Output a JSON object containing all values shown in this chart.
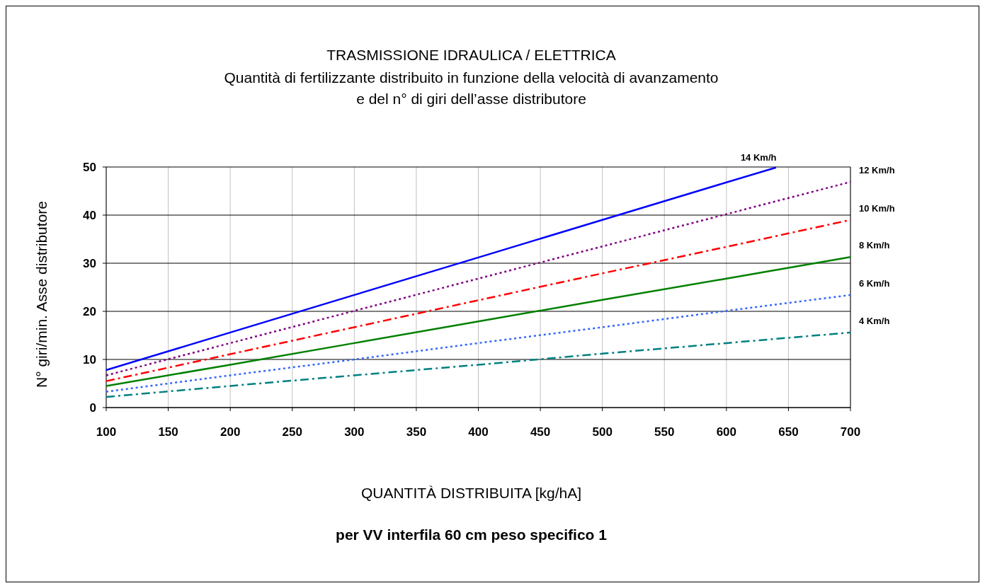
{
  "chart_data": {
    "type": "line",
    "title": "TRASMISSIONE IDRAULICA / ELETTRICA",
    "subtitle": "Quantità di fertilizzante distribuito in funzione della velocità di avanzamento\ne del n° di giri dell’asse distributore",
    "xlabel": "QUANTITÀ DISTRIBUITA [kg/hA]",
    "ylabel": "N° giri/min. Asse distributore",
    "annotations": [
      "per VV interfila 60 cm peso specifico 1"
    ],
    "xlim": [
      100,
      700
    ],
    "xticks": [
      100,
      150,
      200,
      250,
      300,
      350,
      400,
      450,
      500,
      550,
      600,
      650,
      700
    ],
    "ylim": [
      0,
      50
    ],
    "yticks": [
      0,
      10,
      20,
      30,
      40,
      50
    ],
    "grid": true,
    "series": [
      {
        "name": "14 Km/h",
        "color": "#0000ff",
        "line_style": "solid",
        "x": [
          100,
          200,
          300,
          400,
          500,
          600,
          640
        ],
        "values": [
          7.8,
          15.6,
          23.4,
          31.2,
          39,
          46.8,
          49.9
        ]
      },
      {
        "name": "12 Km/h",
        "color": "#800080",
        "line_style": "dotted",
        "x": [
          100,
          200,
          300,
          400,
          500,
          600,
          700
        ],
        "values": [
          6.7,
          13.4,
          20.1,
          26.8,
          33.5,
          40.2,
          46.9
        ]
      },
      {
        "name": "10 Km/h",
        "color": "#ff0000",
        "line_style": "dashdot",
        "x": [
          100,
          200,
          300,
          400,
          500,
          600,
          700
        ],
        "values": [
          5.5,
          11.1,
          16.7,
          22.3,
          27.9,
          33.4,
          39
        ]
      },
      {
        "name": "8 Km/h",
        "color": "#008000",
        "line_style": "solid",
        "x": [
          100,
          200,
          300,
          400,
          500,
          600,
          700
        ],
        "values": [
          4.5,
          8.9,
          13.4,
          17.9,
          22.4,
          26.8,
          31.3
        ]
      },
      {
        "name": "6 Km/h",
        "color": "#3366ff",
        "line_style": "dotted",
        "x": [
          100,
          200,
          300,
          400,
          500,
          600,
          700
        ],
        "values": [
          3.3,
          6.7,
          10,
          13.4,
          16.7,
          20.1,
          23.4
        ]
      },
      {
        "name": "4 Km/h",
        "color": "#008080",
        "line_style": "dashdot",
        "x": [
          100,
          200,
          300,
          400,
          500,
          600,
          700
        ],
        "values": [
          2.2,
          4.5,
          6.7,
          8.9,
          11.2,
          13.4,
          15.6
        ]
      }
    ]
  }
}
